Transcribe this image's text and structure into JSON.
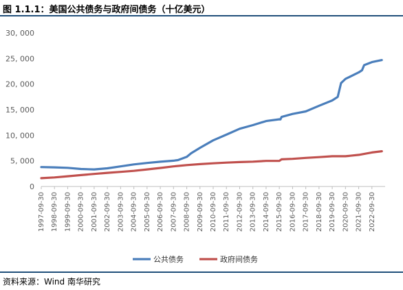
{
  "title": "图 1.1.1：美国公共债务与政府间债务（十亿美元）",
  "source": "资料来源：Wind 南华研究",
  "chart_data": {
    "type": "line",
    "title": "图 1.1.1：美国公共债务与政府间债务（十亿美元）",
    "xlabel": "",
    "ylabel": "",
    "ylim": [
      0,
      30000
    ],
    "yticks": [
      "0",
      "5, 000",
      "10, 000",
      "15, 000",
      "20, 000",
      "25, 000",
      "30, 000"
    ],
    "xticks": [
      "1997-09-30",
      "1998-09-30",
      "1999-09-30",
      "2000-09-30",
      "2001-09-30",
      "2002-09-30",
      "2003-09-30",
      "2004-09-30",
      "2005-09-30",
      "2006-09-30",
      "2007-09-30",
      "2008-09-30",
      "2009-09-30",
      "2010-09-30",
      "2011-09-30",
      "2012-09-30",
      "2013-09-30",
      "2014-09-30",
      "2015-09-30",
      "2016-09-30",
      "2017-09-30",
      "2018-09-30",
      "2019-09-30",
      "2020-09-30",
      "2021-09-30",
      "2022-09-30"
    ],
    "grid": false,
    "legend": "bottom",
    "series": [
      {
        "name": "公共债务",
        "color": "#4a7ebb",
        "points": [
          [
            "1997-09-30",
            3790
          ],
          [
            "1998-09-30",
            3730
          ],
          [
            "1999-09-30",
            3640
          ],
          [
            "2000-09-30",
            3410
          ],
          [
            "2001-09-30",
            3340
          ],
          [
            "2002-09-30",
            3550
          ],
          [
            "2003-09-30",
            3920
          ],
          [
            "2004-09-30",
            4310
          ],
          [
            "2005-09-30",
            4600
          ],
          [
            "2006-09-30",
            4830
          ],
          [
            "2007-09-30",
            5040
          ],
          [
            "2008-01-31",
            5150
          ],
          [
            "2008-09-30",
            5800
          ],
          [
            "2009-01-31",
            6500
          ],
          [
            "2009-09-30",
            7550
          ],
          [
            "2010-09-30",
            9020
          ],
          [
            "2011-09-30",
            10130
          ],
          [
            "2012-09-30",
            11280
          ],
          [
            "2013-09-30",
            11980
          ],
          [
            "2014-09-30",
            12780
          ],
          [
            "2015-09-30",
            13120
          ],
          [
            "2015-10-31",
            13100
          ],
          [
            "2015-11-30",
            13580
          ],
          [
            "2016-09-30",
            14170
          ],
          [
            "2017-09-30",
            14670
          ],
          [
            "2018-09-30",
            15760
          ],
          [
            "2019-09-30",
            16810
          ],
          [
            "2020-02-29",
            17500
          ],
          [
            "2020-05-31",
            20200
          ],
          [
            "2020-09-30",
            21020
          ],
          [
            "2021-09-30",
            22280
          ],
          [
            "2021-12-31",
            22700
          ],
          [
            "2022-02-28",
            23700
          ],
          [
            "2022-09-30",
            24300
          ],
          [
            "2023-06-30",
            24700
          ]
        ]
      },
      {
        "name": "政府间债务",
        "color": "#c0504d",
        "points": [
          [
            "1997-09-30",
            1620
          ],
          [
            "1998-09-30",
            1770
          ],
          [
            "1999-09-30",
            2000
          ],
          [
            "2000-09-30",
            2220
          ],
          [
            "2001-09-30",
            2450
          ],
          [
            "2002-09-30",
            2660
          ],
          [
            "2003-09-30",
            2850
          ],
          [
            "2004-09-30",
            3060
          ],
          [
            "2005-09-30",
            3330
          ],
          [
            "2006-09-30",
            3620
          ],
          [
            "2007-09-30",
            3920
          ],
          [
            "2008-09-30",
            4180
          ],
          [
            "2009-09-30",
            4360
          ],
          [
            "2010-09-30",
            4530
          ],
          [
            "2011-09-30",
            4660
          ],
          [
            "2012-09-30",
            4770
          ],
          [
            "2013-09-30",
            4850
          ],
          [
            "2014-09-30",
            4990
          ],
          [
            "2015-09-30",
            5000
          ],
          [
            "2015-11-30",
            5300
          ],
          [
            "2016-09-30",
            5400
          ],
          [
            "2017-09-30",
            5580
          ],
          [
            "2018-09-30",
            5730
          ],
          [
            "2019-09-30",
            5900
          ],
          [
            "2020-09-30",
            5900
          ],
          [
            "2021-09-30",
            6180
          ],
          [
            "2022-09-30",
            6640
          ],
          [
            "2023-06-30",
            6890
          ]
        ]
      }
    ]
  }
}
